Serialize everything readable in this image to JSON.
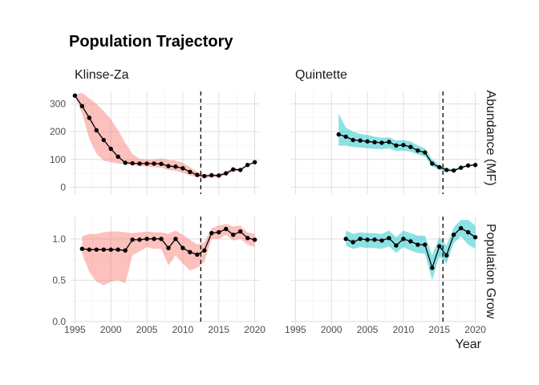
{
  "chart_data": {
    "type": "line",
    "title": "Population Trajectory",
    "xlabel": "Year",
    "xlim": [
      1994.4,
      2020.6
    ],
    "x_ticks": [
      1995,
      2000,
      2005,
      2010,
      2015,
      2020
    ],
    "grid": true,
    "legend": "none",
    "colors": {
      "Klinse-Za": "#F8766D",
      "Quintette": "#00BFC4",
      "line": "#000000",
      "vline": "#000000"
    },
    "rows": [
      {
        "label": "Abundance (MF)",
        "ylim": [
          -25,
          345
        ],
        "y_ticks": [
          0,
          100,
          200,
          300
        ]
      },
      {
        "label": "Population Grow",
        "ylim": [
          -0.03,
          1.27
        ],
        "y_ticks": [
          0.0,
          0.5,
          1.0
        ]
      }
    ],
    "y_tick_labels": [
      [
        "0",
        "100",
        "200",
        "300"
      ],
      [
        "0.0",
        "0.5",
        "1.0"
      ]
    ],
    "x_tick_labels": [
      "1995",
      "2000",
      "2005",
      "2010",
      "2015",
      "2020"
    ],
    "columns": [
      "Klinse-Za",
      "Quintette"
    ],
    "panels": [
      {
        "row": 0,
        "col": 0,
        "herd": "Klinse-Za",
        "vline": 2012.5,
        "x": [
          1995,
          1996,
          1997,
          1998,
          1999,
          2000,
          2001,
          2002,
          2003,
          2004,
          2005,
          2006,
          2007,
          2008,
          2009,
          2010,
          2011,
          2012,
          2013,
          2014,
          2015,
          2016,
          2017,
          2018,
          2019,
          2020
        ],
        "y": [
          330,
          292,
          250,
          205,
          170,
          138,
          110,
          88,
          86,
          85,
          85,
          85,
          84,
          76,
          74,
          68,
          55,
          44,
          40,
          43,
          42,
          50,
          64,
          62,
          80,
          90
        ],
        "lower": [
          330,
          265,
          175,
          120,
          95,
          90,
          85,
          82,
          80,
          76,
          74,
          72,
          70,
          62,
          58,
          52,
          42,
          36,
          32,
          35,
          36,
          44,
          56,
          60,
          78,
          90
        ],
        "upper": [
          335,
          340,
          320,
          300,
          275,
          245,
          205,
          160,
          120,
          102,
          100,
          100,
          104,
          98,
          96,
          88,
          72,
          55,
          45,
          47,
          46,
          56,
          68,
          68,
          82,
          92
        ]
      },
      {
        "row": 0,
        "col": 1,
        "herd": "Quintette",
        "vline": 2015.5,
        "x": [
          2001,
          2002,
          2003,
          2004,
          2005,
          2006,
          2007,
          2008,
          2009,
          2010,
          2011,
          2012,
          2013,
          2014,
          2015,
          2016,
          2017,
          2018,
          2019,
          2020
        ],
        "y": [
          190,
          182,
          170,
          168,
          165,
          162,
          160,
          163,
          150,
          152,
          145,
          132,
          125,
          85,
          72,
          62,
          60,
          70,
          78,
          80
        ],
        "lower": [
          150,
          150,
          145,
          143,
          140,
          138,
          137,
          140,
          130,
          132,
          128,
          118,
          110,
          75,
          64,
          55,
          56,
          67,
          76,
          78
        ],
        "upper": [
          265,
          215,
          200,
          192,
          188,
          182,
          178,
          180,
          168,
          170,
          165,
          150,
          140,
          100,
          80,
          68,
          64,
          75,
          82,
          82
        ]
      },
      {
        "row": 1,
        "col": 0,
        "herd": "Klinse-Za",
        "vline": 2012.5,
        "x": [
          1996,
          1997,
          1998,
          1999,
          2000,
          2001,
          2002,
          2003,
          2004,
          2005,
          2006,
          2007,
          2008,
          2009,
          2010,
          2011,
          2012,
          2013,
          2014,
          2015,
          2016,
          2017,
          2018,
          2019,
          2020
        ],
        "y": [
          0.88,
          0.87,
          0.87,
          0.87,
          0.87,
          0.87,
          0.86,
          0.99,
          0.99,
          1.0,
          1.0,
          1.0,
          0.89,
          1.0,
          0.89,
          0.84,
          0.81,
          0.86,
          1.07,
          1.08,
          1.12,
          1.05,
          1.09,
          1.01,
          0.99
        ],
        "lower": [
          0.82,
          0.6,
          0.48,
          0.44,
          0.48,
          0.5,
          0.46,
          0.8,
          0.85,
          0.9,
          0.88,
          0.88,
          0.68,
          0.8,
          0.7,
          0.62,
          0.65,
          0.72,
          1.0,
          1.0,
          1.05,
          0.98,
          1.0,
          0.93,
          0.9
        ],
        "upper": [
          1.03,
          1.06,
          1.06,
          1.08,
          1.09,
          1.09,
          1.08,
          1.07,
          1.08,
          1.09,
          1.08,
          1.08,
          1.06,
          1.1,
          1.05,
          0.99,
          0.93,
          0.96,
          1.13,
          1.16,
          1.18,
          1.15,
          1.16,
          1.08,
          1.06
        ]
      },
      {
        "row": 1,
        "col": 1,
        "herd": "Quintette",
        "vline": 2015.5,
        "x": [
          2002,
          2003,
          2004,
          2005,
          2006,
          2007,
          2008,
          2009,
          2010,
          2011,
          2012,
          2013,
          2014,
          2015,
          2016,
          2017,
          2018,
          2019,
          2020
        ],
        "y": [
          1.0,
          0.96,
          1.0,
          0.99,
          0.99,
          0.98,
          1.01,
          0.92,
          1.0,
          0.97,
          0.93,
          0.93,
          0.65,
          0.91,
          0.8,
          1.05,
          1.13,
          1.08,
          1.02
        ],
        "lower": [
          0.92,
          0.88,
          0.9,
          0.89,
          0.89,
          0.88,
          0.91,
          0.83,
          0.9,
          0.86,
          0.83,
          0.82,
          0.5,
          0.79,
          0.7,
          0.95,
          1.03,
          0.93,
          0.88
        ],
        "upper": [
          1.1,
          1.06,
          1.08,
          1.07,
          1.07,
          1.06,
          1.1,
          1.02,
          1.1,
          1.07,
          1.04,
          1.04,
          0.8,
          1.02,
          0.92,
          1.14,
          1.23,
          1.23,
          1.16
        ]
      }
    ]
  }
}
